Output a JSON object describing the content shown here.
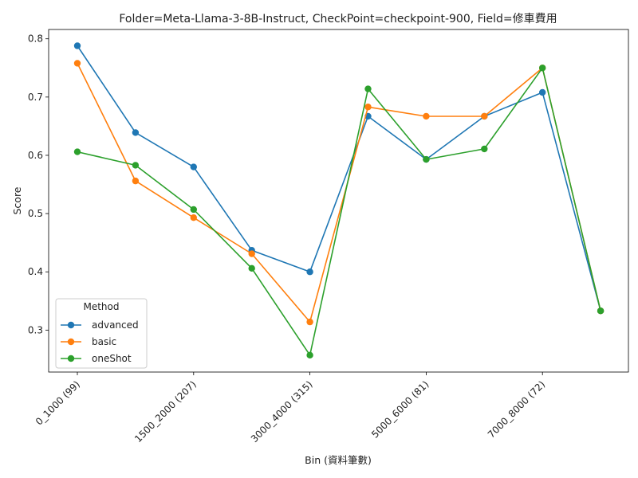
{
  "chart_data": {
    "type": "line",
    "title": "Folder=Meta-Llama-3-8B-Instruct, CheckPoint=checkpoint-900, Field=修車費用",
    "xlabel": "Bin (資料筆數)",
    "ylabel": "Score",
    "categories": [
      "0_1000 (99)",
      "",
      "1500_2000 (207)",
      "",
      "3000_4000 (315)",
      "",
      "5000_6000 (81)",
      "",
      "7000_8000 (72)",
      ""
    ],
    "x_tick_labels": [
      "0_1000 (99)",
      "1500_2000 (207)",
      "3000_4000 (315)",
      "5000_6000 (81)",
      "7000_8000 (72)"
    ],
    "x_tick_positions": [
      0,
      2,
      4,
      6,
      8
    ],
    "ylim": [
      0.228,
      0.816
    ],
    "y_ticks": [
      0.3,
      0.4,
      0.5,
      0.6,
      0.7,
      0.8
    ],
    "y_tick_labels": [
      "0.3",
      "0.4",
      "0.5",
      "0.6",
      "0.7",
      "0.8"
    ],
    "legend_title": "Method",
    "legend_position": "bottom-left",
    "series": [
      {
        "name": "advanced",
        "color": "#1f77b4",
        "values": [
          0.788,
          0.639,
          0.58,
          0.437,
          0.4,
          0.667,
          0.593,
          0.667,
          0.708,
          0.333
        ]
      },
      {
        "name": "basic",
        "color": "#ff7f0e",
        "values": [
          0.758,
          0.556,
          0.493,
          0.431,
          0.314,
          0.683,
          0.667,
          0.667,
          0.75,
          0.333
        ]
      },
      {
        "name": "oneShot",
        "color": "#2ca02c",
        "values": [
          0.606,
          0.583,
          0.507,
          0.406,
          0.257,
          0.714,
          0.593,
          0.611,
          0.75,
          0.333
        ]
      }
    ]
  }
}
